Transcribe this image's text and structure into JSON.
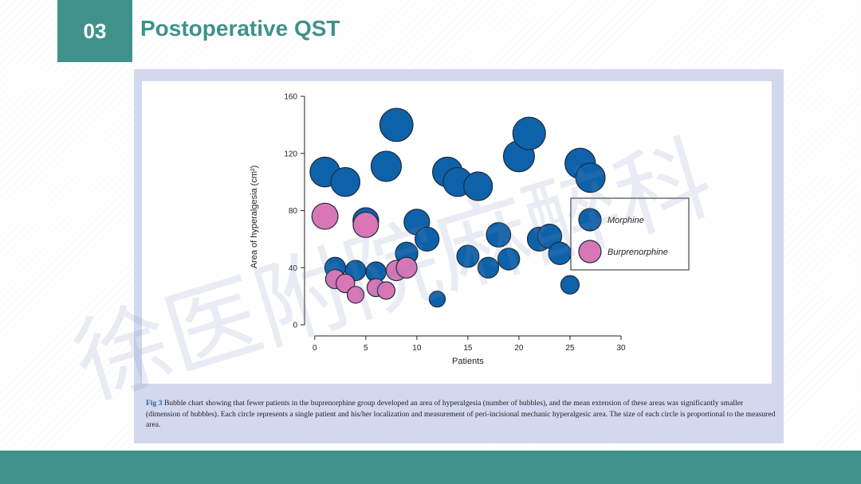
{
  "header": {
    "section_number": "03",
    "title": "Postoperative QST"
  },
  "watermark_text": "徐医附院麻醉科",
  "caption": {
    "fig_label": "Fig 3",
    "text": "Bubble chart showing that fewer patients in the buprenorphine group developed an area of hyperalgesia (number of bubbles), and the mean extension of these areas was significantly smaller (dimension of bubbles). Each circle represents a single patient and his/her localization and measurement of peri-incisional mechanic hyperalgesic area. The size of each circle is proportional to the measured area."
  },
  "chart_data": {
    "type": "scatter",
    "xlabel": "Patients",
    "ylabel": "Area of hyperalgesia (cm²)",
    "xlim": [
      -1,
      30
    ],
    "ylim": [
      0,
      160
    ],
    "xticks": [
      0,
      5,
      10,
      15,
      20,
      25,
      30
    ],
    "yticks": [
      0,
      40,
      80,
      120,
      160
    ],
    "legend_position": "right",
    "bubble_size": "proportional to area",
    "series": [
      {
        "name": "Morphine",
        "color": "#0e62aa",
        "points": [
          {
            "x": 1,
            "y": 107
          },
          {
            "x": 2,
            "y": 40
          },
          {
            "x": 3,
            "y": 100
          },
          {
            "x": 4,
            "y": 38
          },
          {
            "x": 5,
            "y": 73
          },
          {
            "x": 6,
            "y": 37
          },
          {
            "x": 7,
            "y": 111
          },
          {
            "x": 8,
            "y": 140
          },
          {
            "x": 9,
            "y": 50
          },
          {
            "x": 10,
            "y": 72
          },
          {
            "x": 11,
            "y": 60
          },
          {
            "x": 12,
            "y": 18
          },
          {
            "x": 13,
            "y": 107
          },
          {
            "x": 14,
            "y": 100
          },
          {
            "x": 15,
            "y": 48
          },
          {
            "x": 16,
            "y": 97
          },
          {
            "x": 17,
            "y": 40
          },
          {
            "x": 18,
            "y": 63
          },
          {
            "x": 19,
            "y": 46
          },
          {
            "x": 20,
            "y": 118
          },
          {
            "x": 21,
            "y": 134
          },
          {
            "x": 22,
            "y": 60
          },
          {
            "x": 23,
            "y": 62
          },
          {
            "x": 24,
            "y": 50
          },
          {
            "x": 25,
            "y": 28
          },
          {
            "x": 26,
            "y": 113
          },
          {
            "x": 27,
            "y": 103
          }
        ]
      },
      {
        "name": "Burprenorphine",
        "color": "#d977b6",
        "points": [
          {
            "x": 1,
            "y": 76
          },
          {
            "x": 2,
            "y": 32
          },
          {
            "x": 3,
            "y": 29
          },
          {
            "x": 4,
            "y": 21
          },
          {
            "x": 5,
            "y": 70
          },
          {
            "x": 6,
            "y": 26
          },
          {
            "x": 7,
            "y": 24
          },
          {
            "x": 8,
            "y": 38
          },
          {
            "x": 9,
            "y": 40
          }
        ]
      }
    ]
  }
}
